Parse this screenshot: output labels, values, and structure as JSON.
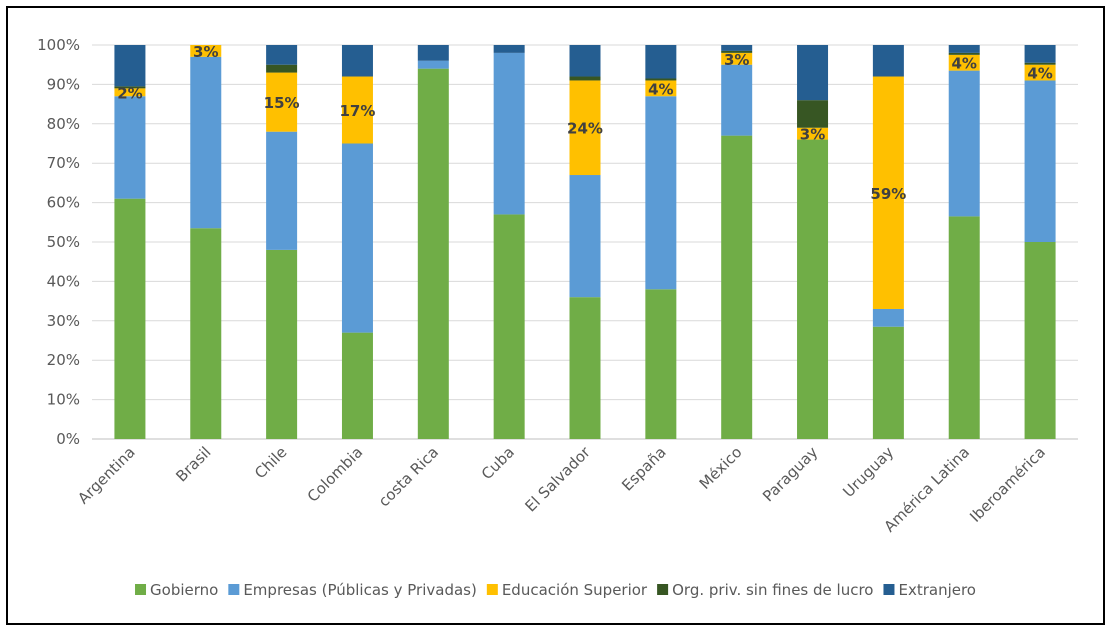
{
  "chart_data": {
    "type": "bar",
    "stacked": true,
    "percent": true,
    "ylim": [
      0,
      100
    ],
    "yticks": [
      "0%",
      "10%",
      "20%",
      "30%",
      "40%",
      "50%",
      "60%",
      "70%",
      "80%",
      "90%",
      "100%"
    ],
    "grid": true,
    "legend_position": "bottom",
    "categories": [
      "Argentina",
      "Brasil",
      "Chile",
      "Colombia",
      "costa Rica",
      "Cuba",
      "El Salvador",
      "España",
      "México",
      "Paraguay",
      "Uruguay",
      "América Latina",
      "Iberoamérica"
    ],
    "series": [
      {
        "name": "Gobierno",
        "color": "#70AD47",
        "values": [
          61,
          53.5,
          48,
          27,
          94,
          57,
          36,
          38,
          77,
          76,
          28.5,
          56.5,
          50
        ]
      },
      {
        "name": "Empresas (Públicas y Privadas)",
        "color": "#5B9BD5",
        "values": [
          26,
          43.5,
          30,
          48,
          2,
          41,
          31,
          49,
          18,
          0,
          4.5,
          37,
          41
        ]
      },
      {
        "name": "Educación Superior",
        "color": "#FFC000",
        "values": [
          2,
          3,
          15,
          17,
          0,
          0,
          24,
          4,
          3,
          3,
          59,
          4,
          4
        ]
      },
      {
        "name": "Org. priv. sin fines de lucro",
        "color": "#375623",
        "values": [
          0.5,
          0,
          2,
          0,
          0,
          0,
          1,
          0.5,
          0.5,
          7,
          0,
          0.5,
          0.5
        ]
      },
      {
        "name": "Extranjero",
        "color": "#255E91",
        "values": [
          10.5,
          0,
          5,
          8,
          4,
          2,
          8,
          8.5,
          1.5,
          14,
          8,
          2,
          4.5
        ]
      }
    ],
    "data_labels": [
      {
        "category": "Argentina",
        "series": "Educación Superior",
        "text": "2%"
      },
      {
        "category": "Brasil",
        "series": "Educación Superior",
        "text": "3%"
      },
      {
        "category": "Chile",
        "series": "Educación Superior",
        "text": "15%"
      },
      {
        "category": "Colombia",
        "series": "Educación Superior",
        "text": "17%"
      },
      {
        "category": "El Salvador",
        "series": "Educación Superior",
        "text": "24%"
      },
      {
        "category": "España",
        "series": "Educación Superior",
        "text": "4%"
      },
      {
        "category": "México",
        "series": "Educación Superior",
        "text": "3%"
      },
      {
        "category": "Paraguay",
        "series": "Educación Superior",
        "text": "3%"
      },
      {
        "category": "Uruguay",
        "series": "Educación Superior",
        "text": "59%"
      },
      {
        "category": "América Latina",
        "series": "Educación Superior",
        "text": "4%"
      },
      {
        "category": "Iberoamérica",
        "series": "Educación Superior",
        "text": "4%"
      }
    ]
  }
}
